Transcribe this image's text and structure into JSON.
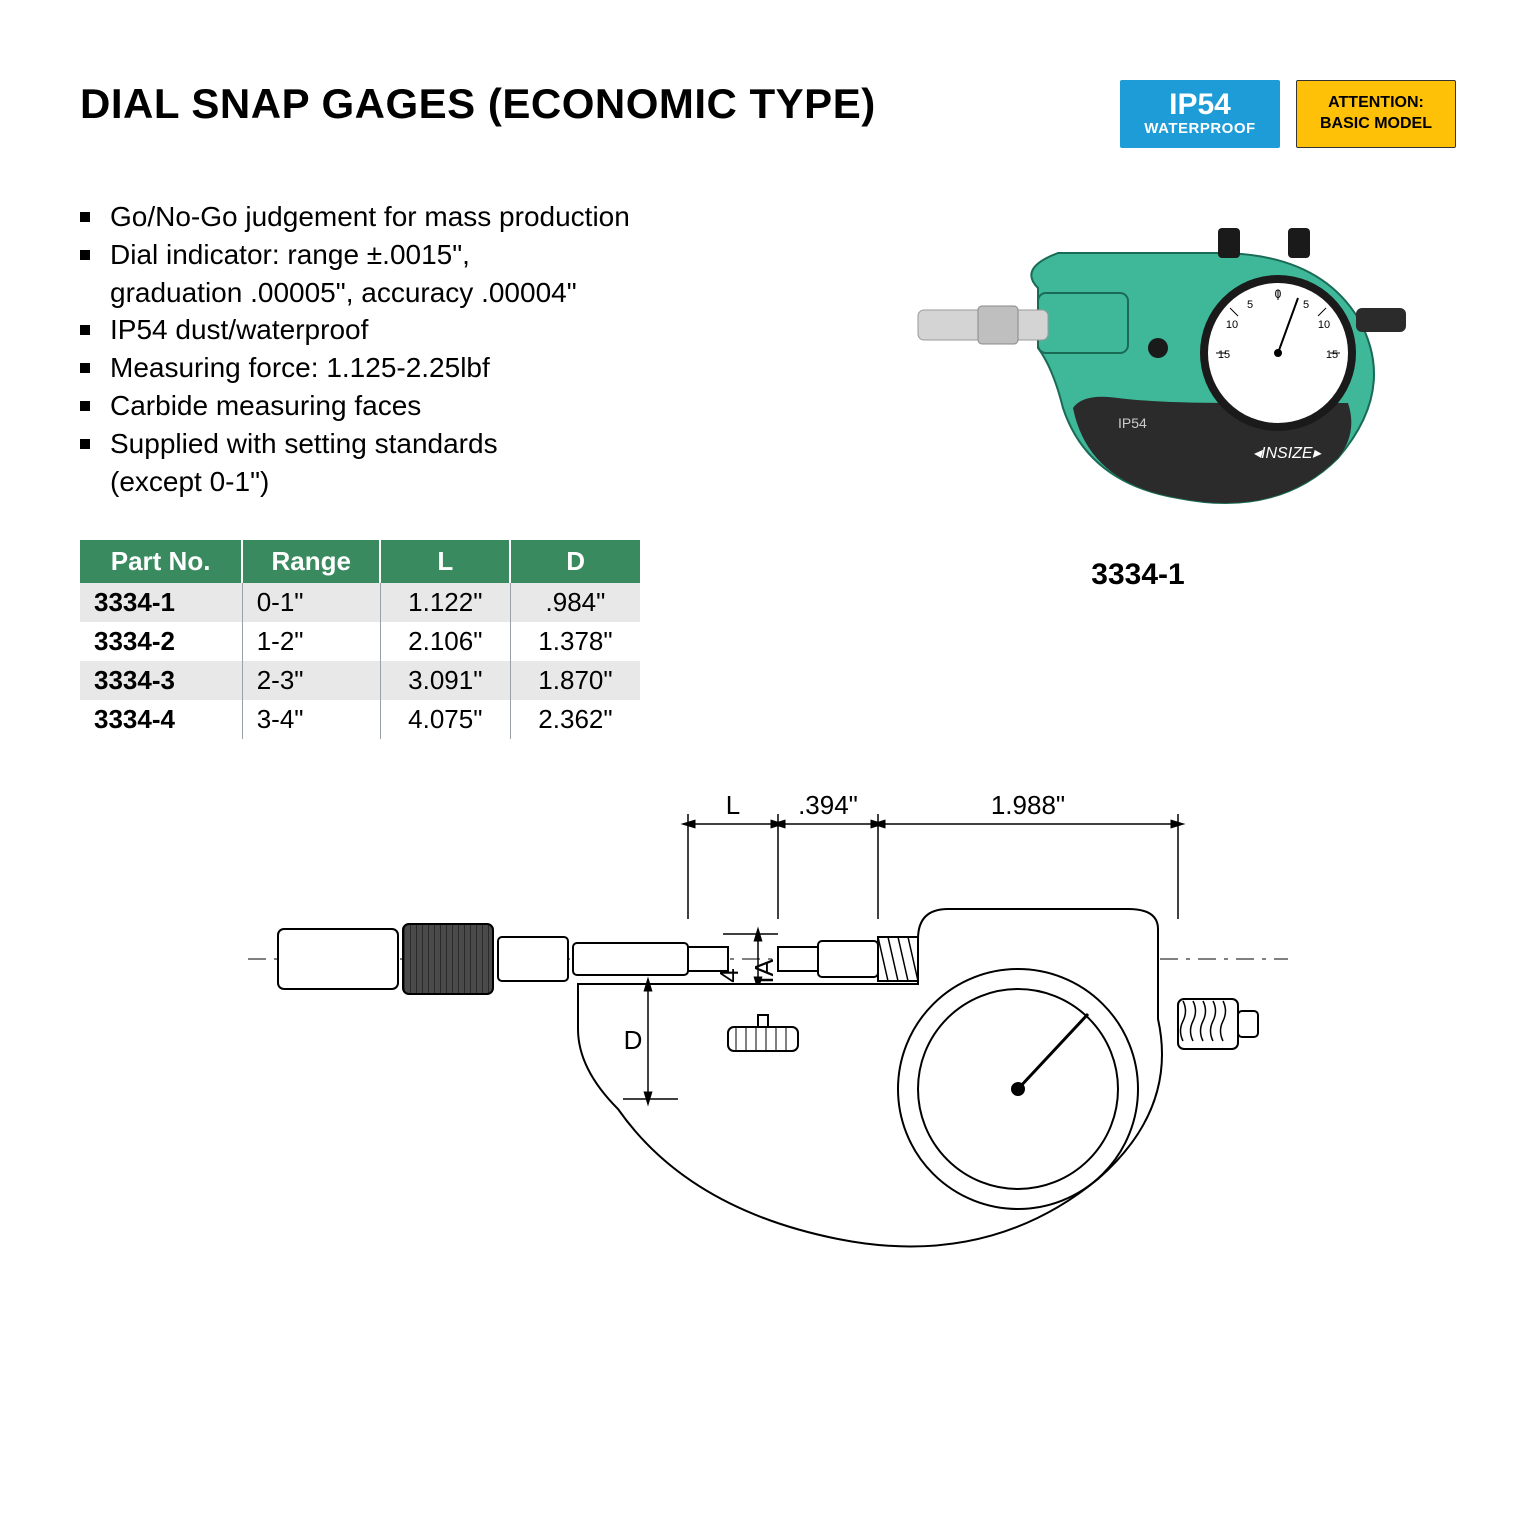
{
  "title": "DIAL SNAP GAGES (ECONOMIC TYPE)",
  "badges": {
    "blue": {
      "line1": "IP54",
      "line2": "WATERPROOF",
      "bg": "#1e9cd8",
      "fg": "#ffffff"
    },
    "yellow": {
      "line1": "ATTENTION:",
      "line2": "BASIC MODEL",
      "bg": "#ffc107",
      "fg": "#000000"
    }
  },
  "features": [
    "Go/No-Go judgement for mass production",
    "Dial indicator: range ±.0015\",\ngraduation .00005\", accuracy .00004\"",
    "IP54 dust/waterproof",
    "Measuring force: 1.125-2.25lbf",
    "Carbide measuring faces",
    "Supplied with setting standards\n(except 0-1\")"
  ],
  "table": {
    "header_bg": "#3a8a5f",
    "header_fg": "#ffffff",
    "row_odd_bg": "#e8e8e8",
    "row_even_bg": "#ffffff",
    "columns": [
      "Part No.",
      "Range",
      "L",
      "D"
    ],
    "rows": [
      [
        "3334-1",
        "0-1\"",
        "1.122\"",
        ".984\""
      ],
      [
        "3334-2",
        "1-2\"",
        "2.106\"",
        "1.378\""
      ],
      [
        "3334-3",
        "2-3\"",
        "3.091\"",
        "1.870\""
      ],
      [
        "3334-4",
        "3-4\"",
        "4.075\"",
        "2.362\""
      ]
    ]
  },
  "product": {
    "caption": "3334-1",
    "body_color": "#3fb89a",
    "grip_color": "#2b2b2b",
    "metal_color": "#c8c8c8",
    "dial_face": "#ffffff",
    "brand": "INSIZE",
    "ip_mark": "IP54",
    "dial_marks": [
      "-15",
      "-10",
      "-5",
      "0",
      "5",
      "10",
      "15"
    ]
  },
  "diagram": {
    "labels": {
      "L": "L",
      "d394": ".394\"",
      "d1988": "1.988\"",
      "d394dia": ".394\"",
      "dia": "DIA",
      "D": "D"
    },
    "line_color": "#000000",
    "fill_color": "#f4f4f4"
  }
}
